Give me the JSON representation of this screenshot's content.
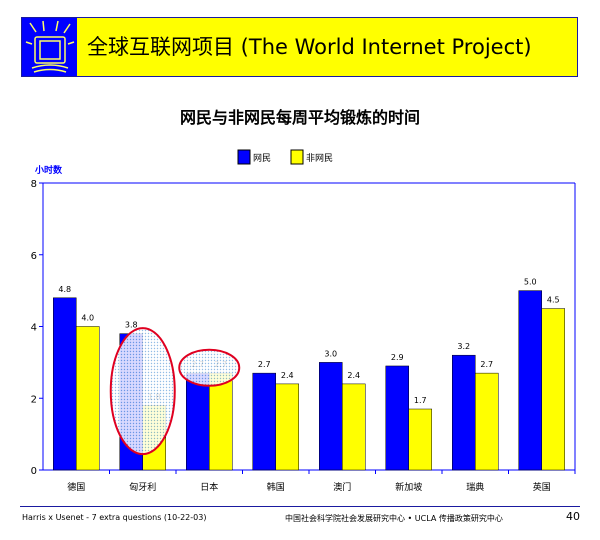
{
  "header": {
    "title": "全球互联网项目 (The World Internet Project)",
    "logo_icon": "monitor-rays-icon"
  },
  "footer": {
    "left": "Harris x Usenet - 7 extra questions (10-22-03)",
    "center": "中国社会科学院社会发展研究中心 • UCLA 传播政策研究中心",
    "page": "40"
  },
  "colors": {
    "series1": "#0000ff",
    "series2": "#ffff00",
    "axis": "#0000ff",
    "highlight": "#e00020"
  },
  "chart_data": {
    "type": "bar",
    "title": "网民与非网民每周平均锻炼的时间",
    "ylabel": "小时数",
    "ylim": [
      0,
      8
    ],
    "yticks": [
      0,
      2,
      4,
      6,
      8
    ],
    "legend_position": "top",
    "categories": [
      "德国",
      "匈牙利",
      "日本",
      "韩国",
      "澳门",
      "新加坡",
      "瑞典",
      "英国"
    ],
    "series": [
      {
        "name": "网民",
        "values": [
          4.8,
          3.8,
          2.7,
          2.7,
          3.0,
          2.9,
          3.2,
          5.0
        ]
      },
      {
        "name": "非网民",
        "values": [
          4.0,
          1.8,
          2.7,
          2.4,
          2.4,
          1.7,
          2.7,
          4.5
        ]
      }
    ],
    "highlighted_categories": [
      "匈牙利",
      "日本"
    ]
  }
}
